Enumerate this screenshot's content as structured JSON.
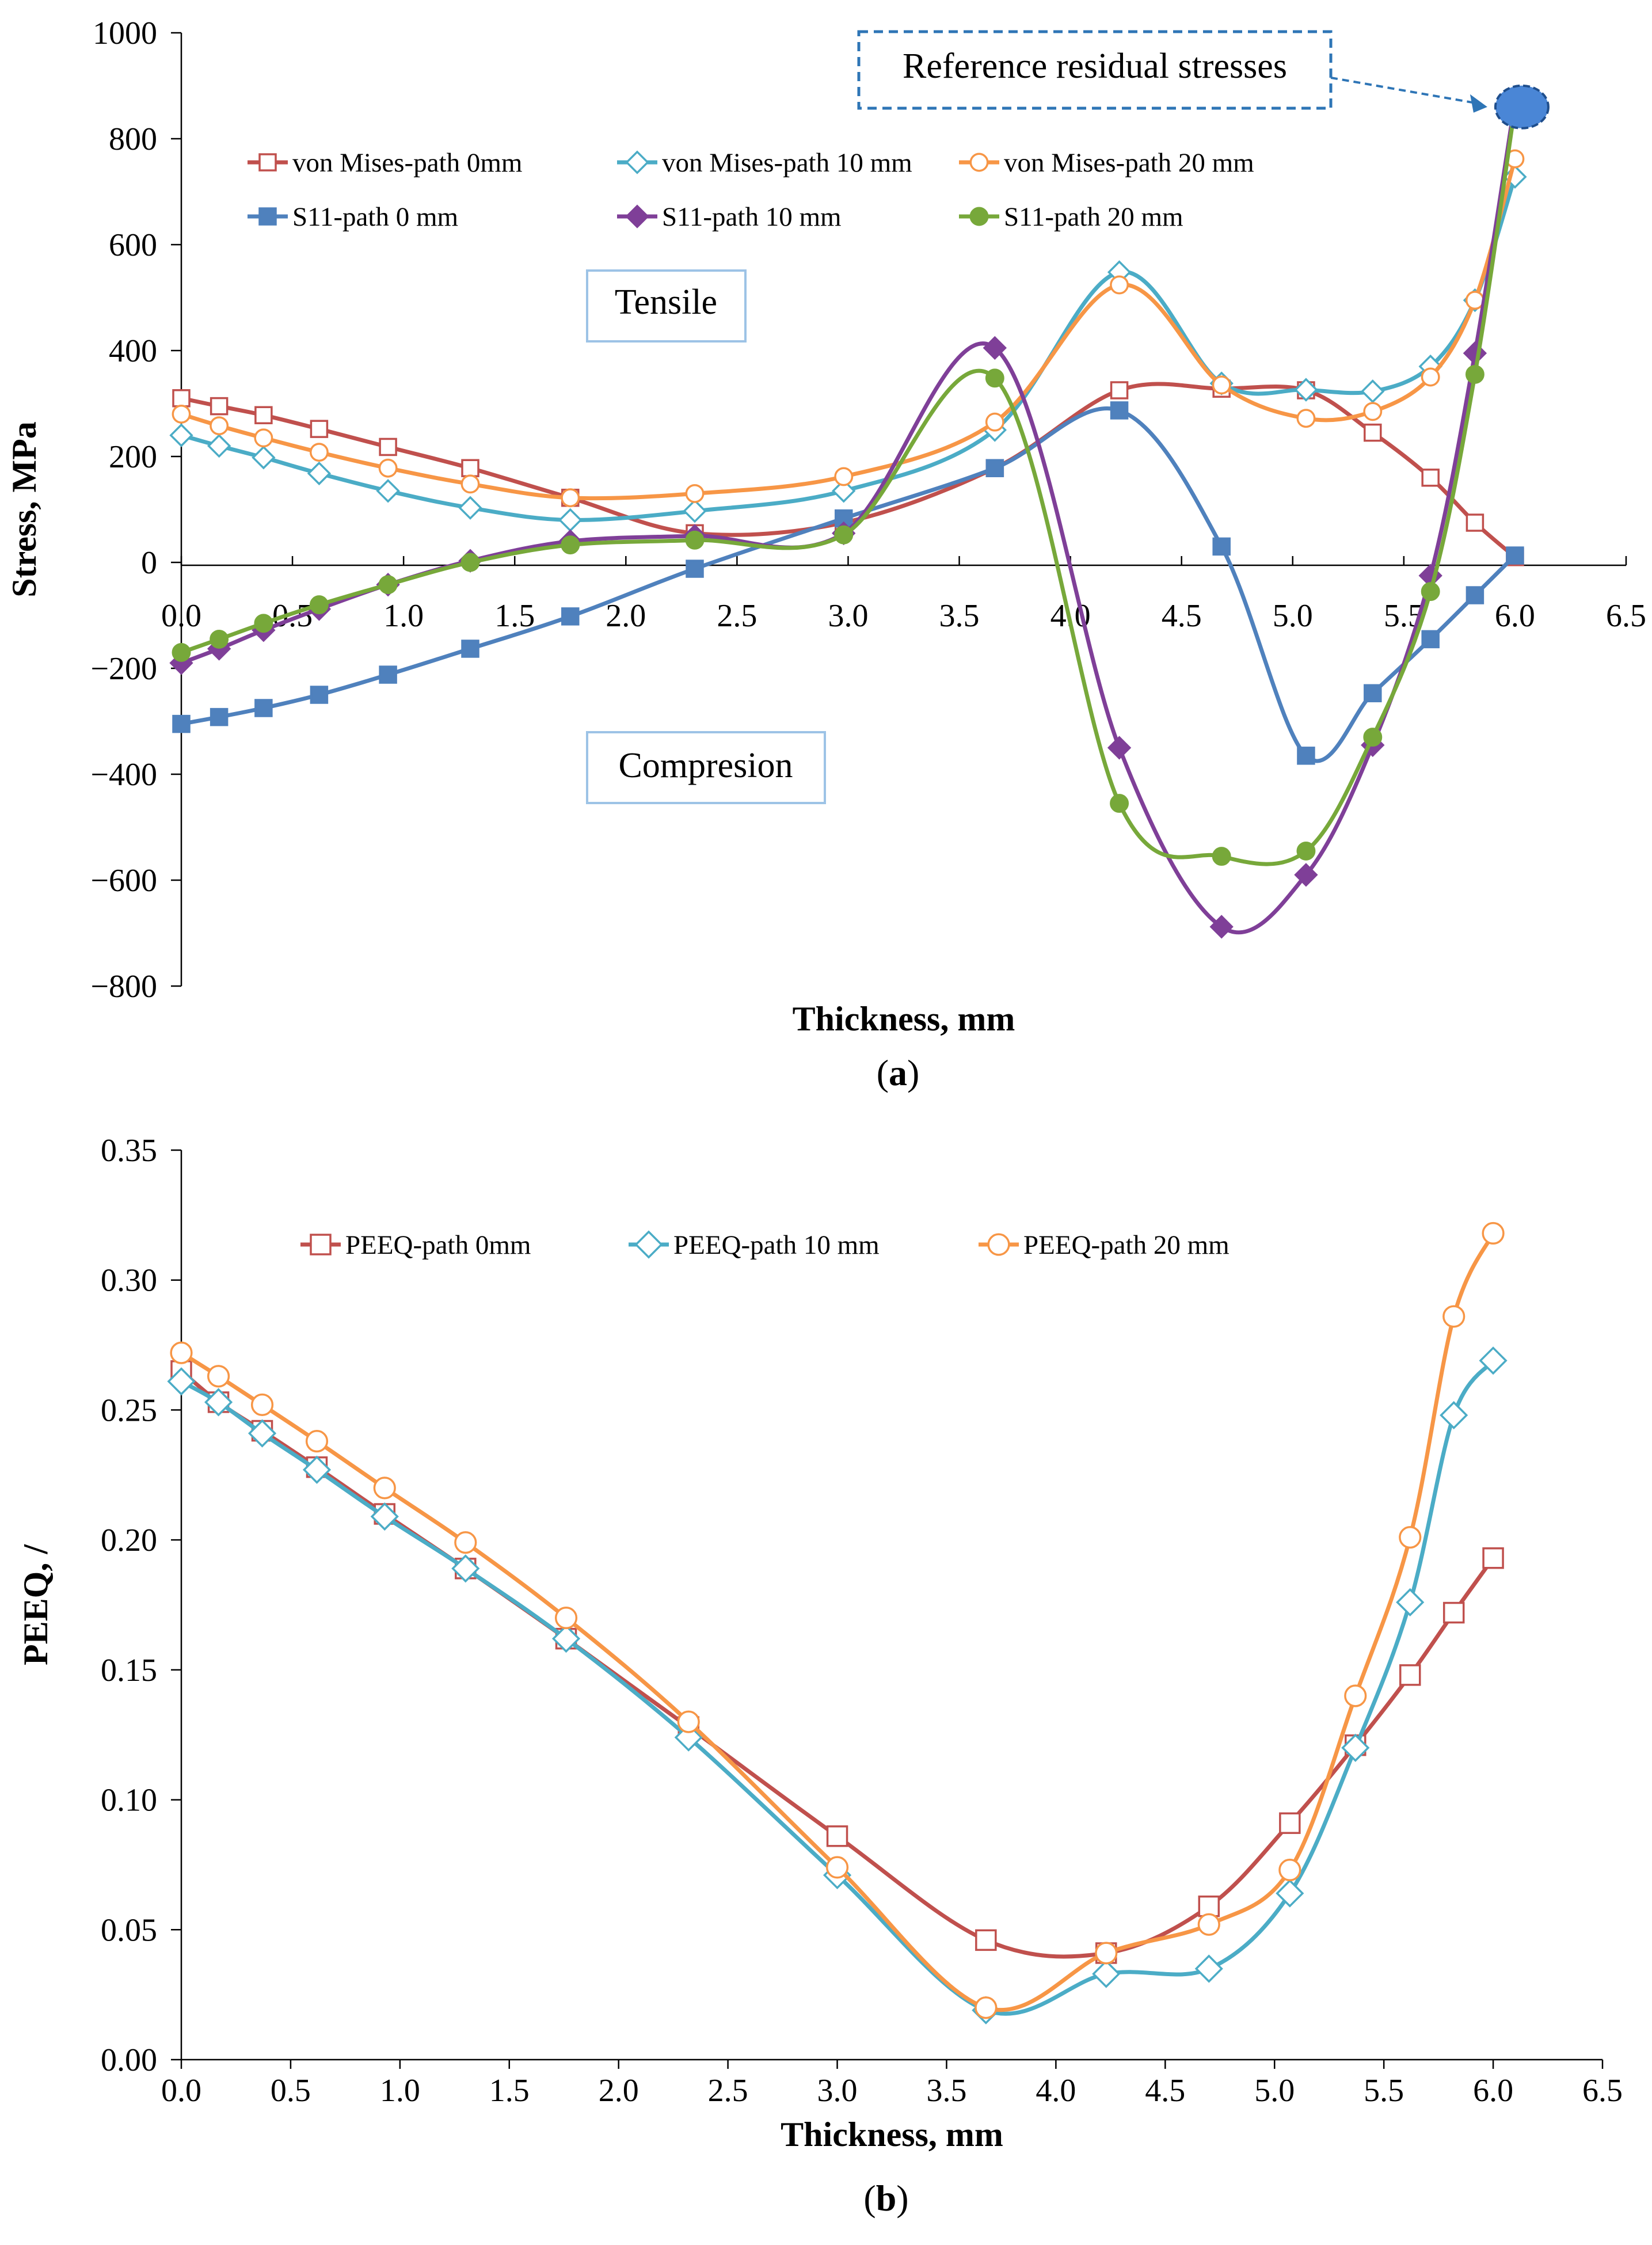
{
  "chart_data": [
    {
      "type": "line",
      "panel_label": "a",
      "xlabel": "Thickness, mm",
      "ylabel": "Stress, MPa",
      "xlim": [
        0,
        6.5
      ],
      "ylim": [
        -800,
        1000
      ],
      "xticks": [
        "0.0",
        "0.5",
        "1.0",
        "1.5",
        "2.0",
        "2.5",
        "3.0",
        "3.5",
        "4.0",
        "4.5",
        "5.0",
        "5.5",
        "6.0",
        "6.5"
      ],
      "yticks": [
        "1000",
        "800",
        "600",
        "400",
        "200",
        "0",
        "−200",
        "−400",
        "−600",
        "−800"
      ],
      "grid": false,
      "legend_position": "top",
      "annotations": {
        "tensile": "Tensile",
        "compression": "Compresion",
        "reference": "Reference residual stresses"
      },
      "reference_point": {
        "x": 6.0,
        "y": 860
      },
      "x": [
        0.0,
        0.17,
        0.37,
        0.62,
        0.93,
        1.3,
        1.75,
        2.31,
        2.98,
        3.66,
        4.22,
        4.68,
        5.06,
        5.36,
        5.62,
        5.82,
        6.0
      ],
      "series": [
        {
          "name": "von Mises-path 0mm",
          "color": "#c0504d",
          "marker": "square-open",
          "values": [
            310,
            295,
            278,
            252,
            218,
            178,
            122,
            55,
            75,
            178,
            325,
            328,
            325,
            245,
            160,
            75,
            10
          ]
        },
        {
          "name": "von Mises-path 10 mm",
          "color": "#4bacc6",
          "marker": "diamond-open",
          "values": [
            240,
            220,
            198,
            168,
            135,
            103,
            80,
            97,
            135,
            250,
            548,
            338,
            326,
            323,
            370,
            495,
            728
          ]
        },
        {
          "name": "von Mises-path 20 mm",
          "color": "#f79646",
          "marker": "circle-open",
          "values": [
            280,
            258,
            235,
            208,
            178,
            148,
            122,
            130,
            162,
            265,
            524,
            335,
            272,
            285,
            350,
            495,
            762
          ]
        },
        {
          "name": "S11-path 0 mm",
          "color": "#4f81bd",
          "marker": "square",
          "values": [
            -305,
            -292,
            -275,
            -250,
            -212,
            -163,
            -102,
            -12,
            83,
            178,
            287,
            30,
            -365,
            -247,
            -145,
            -62,
            13
          ]
        },
        {
          "name": "S11-path 10 mm",
          "color": "#7f3f98",
          "marker": "diamond",
          "values": [
            -190,
            -163,
            -128,
            -88,
            -42,
            3,
            40,
            50,
            55,
            405,
            -350,
            -688,
            -590,
            -345,
            -25,
            395,
            870
          ]
        },
        {
          "name": "S11-path 20 mm",
          "color": "#77a83a",
          "marker": "circle",
          "values": [
            -170,
            -145,
            -115,
            -80,
            -42,
            0,
            33,
            42,
            52,
            348,
            -455,
            -555,
            -545,
            -330,
            -55,
            355,
            860
          ]
        }
      ]
    },
    {
      "type": "line",
      "panel_label": "b",
      "xlabel": "Thickness, mm",
      "ylabel": "PEEQ, /",
      "xlim": [
        0,
        6.5
      ],
      "ylim": [
        0,
        0.35
      ],
      "xticks": [
        "0.0",
        "0.5",
        "1.0",
        "1.5",
        "2.0",
        "2.5",
        "3.0",
        "3.5",
        "4.0",
        "4.5",
        "5.0",
        "5.5",
        "6.0",
        "6.5"
      ],
      "yticks": [
        "0.35",
        "0.30",
        "0.25",
        "0.20",
        "0.15",
        "0.10",
        "0.05",
        "0.00"
      ],
      "grid": false,
      "legend_position": "top",
      "x": [
        0.0,
        0.17,
        0.37,
        0.62,
        0.93,
        1.3,
        1.76,
        2.32,
        3.0,
        3.68,
        4.23,
        4.7,
        5.07,
        5.37,
        5.62,
        5.82,
        6.0
      ],
      "series": [
        {
          "name": "PEEQ-path 0mm",
          "color": "#c0504d",
          "marker": "square-open",
          "values": [
            0.265,
            0.253,
            0.242,
            0.228,
            0.21,
            0.189,
            0.162,
            0.128,
            0.086,
            0.046,
            0.041,
            0.059,
            0.091,
            0.121,
            0.148,
            0.172,
            0.193
          ]
        },
        {
          "name": "PEEQ-path 10 mm",
          "color": "#4bacc6",
          "marker": "diamond-open",
          "values": [
            0.261,
            0.253,
            0.241,
            0.227,
            0.209,
            0.189,
            0.162,
            0.124,
            0.071,
            0.019,
            0.033,
            0.035,
            0.064,
            0.12,
            0.176,
            0.248,
            0.269
          ]
        },
        {
          "name": "PEEQ-path 20 mm",
          "color": "#f79646",
          "marker": "circle-open",
          "values": [
            0.272,
            0.263,
            0.252,
            0.238,
            0.22,
            0.199,
            0.17,
            0.13,
            0.074,
            0.02,
            0.041,
            0.052,
            0.073,
            0.14,
            0.201,
            0.286,
            0.318
          ]
        }
      ]
    }
  ]
}
